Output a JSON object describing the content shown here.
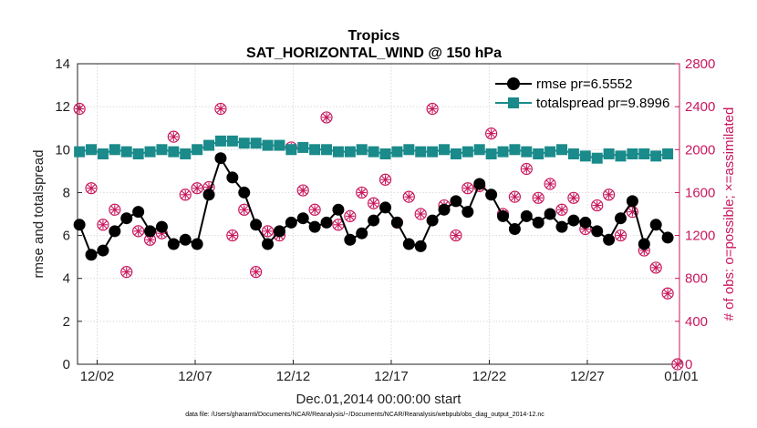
{
  "chart_data": {
    "type": "line",
    "title": "Tropics",
    "subtitle": "SAT_HORIZONTAL_WIND @ 150 hPa",
    "xlabel": "Dec.01,2014 00:00:00 start",
    "ylabel": "rmse and totalspread",
    "y2label": "# of obs: o=possible; ×=assimilated",
    "footnote": "data file: /Users/gharamti/Documents/NCAR/Reanalysis/~/Documents/NCAR/Reanalysis/webpub/obs_diag_output_2014-12.nc",
    "xlim": [
      0.5,
      31.2
    ],
    "ylim": [
      0,
      14
    ],
    "y2lim": [
      0,
      2800
    ],
    "x_ticks": [
      1.5,
      6.5,
      11.5,
      16.5,
      21.5,
      26.5,
      31.5
    ],
    "x_tick_labels": [
      "12/02",
      "12/07",
      "12/12",
      "12/17",
      "12/22",
      "12/27",
      "01/01"
    ],
    "y_ticks": [
      0,
      2,
      4,
      6,
      8,
      10,
      12,
      14
    ],
    "y2_ticks": [
      0,
      400,
      800,
      1200,
      1600,
      2000,
      2400,
      2800
    ],
    "legend_position": "top-right",
    "colors": {
      "rmse": "#000000",
      "totalspread": "#1a8a8a",
      "obs": "#c8175d",
      "grid": "#d9d9d9"
    },
    "series": [
      {
        "name": "rmse",
        "label": "rmse pr=6.5552",
        "x": [
          0.6,
          1.2,
          1.8,
          2.4,
          3.0,
          3.6,
          4.2,
          4.8,
          5.4,
          6.0,
          6.6,
          7.2,
          7.8,
          8.4,
          9.0,
          9.6,
          10.2,
          10.8,
          11.4,
          12.0,
          12.6,
          13.2,
          13.8,
          14.4,
          15.0,
          15.6,
          16.2,
          16.8,
          17.4,
          18.0,
          18.6,
          19.2,
          19.8,
          20.4,
          21.0,
          21.6,
          22.2,
          22.8,
          23.4,
          24.0,
          24.6,
          25.2,
          25.8,
          26.4,
          27.0,
          27.6,
          28.2,
          28.8,
          29.4,
          30.0,
          30.6
        ],
        "values": [
          6.5,
          5.1,
          5.3,
          6.2,
          6.8,
          7.1,
          6.2,
          6.4,
          5.6,
          5.8,
          5.6,
          7.9,
          9.6,
          8.7,
          8.0,
          6.5,
          5.6,
          6.2,
          6.6,
          6.8,
          6.4,
          6.6,
          7.2,
          5.8,
          6.1,
          6.7,
          7.3,
          6.6,
          5.6,
          5.5,
          6.7,
          7.2,
          7.6,
          7.1,
          8.4,
          7.9,
          6.9,
          6.3,
          6.9,
          6.6,
          7.0,
          6.4,
          6.7,
          6.6,
          6.2,
          5.8,
          6.8,
          7.6,
          5.6,
          6.5,
          5.9
        ]
      },
      {
        "name": "totalspread",
        "label": "totalspread pr=9.8996",
        "x": [
          0.6,
          1.2,
          1.8,
          2.4,
          3.0,
          3.6,
          4.2,
          4.8,
          5.4,
          6.0,
          6.6,
          7.2,
          7.8,
          8.4,
          9.0,
          9.6,
          10.2,
          10.8,
          11.4,
          12.0,
          12.6,
          13.2,
          13.8,
          14.4,
          15.0,
          15.6,
          16.2,
          16.8,
          17.4,
          18.0,
          18.6,
          19.2,
          19.8,
          20.4,
          21.0,
          21.6,
          22.2,
          22.8,
          23.4,
          24.0,
          24.6,
          25.2,
          25.8,
          26.4,
          27.0,
          27.6,
          28.2,
          28.8,
          29.4,
          30.0,
          30.6
        ],
        "values": [
          9.9,
          10.0,
          9.8,
          10.0,
          9.9,
          9.8,
          9.9,
          10.0,
          9.9,
          9.8,
          10.0,
          10.2,
          10.4,
          10.4,
          10.3,
          10.3,
          10.2,
          10.2,
          10.0,
          10.1,
          10.0,
          10.0,
          9.9,
          9.9,
          10.0,
          9.9,
          9.8,
          9.9,
          10.0,
          9.9,
          9.9,
          10.0,
          9.8,
          9.9,
          10.0,
          9.8,
          9.9,
          10.0,
          9.9,
          9.8,
          9.9,
          10.0,
          9.8,
          9.7,
          9.6,
          9.8,
          9.7,
          9.8,
          9.8,
          9.7,
          9.8
        ]
      },
      {
        "name": "obs_possible",
        "label": "",
        "axis": "right",
        "x": [
          0.6,
          1.2,
          1.8,
          2.4,
          3.0,
          3.6,
          4.2,
          4.8,
          5.4,
          6.0,
          6.6,
          7.2,
          7.8,
          8.4,
          9.0,
          9.6,
          10.2,
          10.8,
          11.4,
          12.0,
          12.6,
          13.2,
          13.8,
          14.4,
          15.0,
          15.6,
          16.2,
          16.8,
          17.4,
          18.0,
          18.6,
          19.2,
          19.8,
          20.4,
          21.0,
          21.6,
          22.2,
          22.8,
          23.4,
          24.0,
          24.6,
          25.2,
          25.8,
          26.4,
          27.0,
          27.6,
          28.2,
          28.8,
          29.4,
          30.0,
          30.6,
          31.1
        ],
        "values": [
          2380,
          1640,
          1300,
          1440,
          860,
          1240,
          1160,
          1220,
          2120,
          1580,
          1640,
          1650,
          2380,
          1200,
          1440,
          860,
          1240,
          1200,
          2020,
          1620,
          1440,
          2300,
          1300,
          1380,
          1600,
          1500,
          1720,
          1320,
          1560,
          1400,
          2380,
          1480,
          1200,
          1640,
          1660,
          2150,
          1400,
          1560,
          1820,
          1550,
          1680,
          1440,
          1550,
          1260,
          1480,
          1580,
          1200,
          1420,
          1060,
          900,
          660,
          0
        ]
      },
      {
        "name": "obs_assimilated",
        "label": "",
        "axis": "right",
        "x": [
          0.6,
          1.2,
          1.8,
          2.4,
          3.0,
          3.6,
          4.2,
          4.8,
          5.4,
          6.0,
          6.6,
          7.2,
          7.8,
          8.4,
          9.0,
          9.6,
          10.2,
          10.8,
          11.4,
          12.0,
          12.6,
          13.2,
          13.8,
          14.4,
          15.0,
          15.6,
          16.2,
          16.8,
          17.4,
          18.0,
          18.6,
          19.2,
          19.8,
          20.4,
          21.0,
          21.6,
          22.2,
          22.8,
          23.4,
          24.0,
          24.6,
          25.2,
          25.8,
          26.4,
          27.0,
          27.6,
          28.2,
          28.8,
          29.4,
          30.0,
          30.6,
          31.1
        ],
        "values": [
          2380,
          1640,
          1300,
          1440,
          860,
          1240,
          1160,
          1220,
          2120,
          1580,
          1640,
          1650,
          2380,
          1200,
          1440,
          860,
          1240,
          1200,
          2020,
          1620,
          1440,
          2300,
          1300,
          1380,
          1600,
          1500,
          1720,
          1320,
          1560,
          1400,
          2380,
          1480,
          1200,
          1640,
          1660,
          2150,
          1400,
          1560,
          1820,
          1550,
          1680,
          1440,
          1550,
          1260,
          1480,
          1580,
          1200,
          1420,
          1060,
          900,
          660,
          0
        ]
      }
    ]
  }
}
